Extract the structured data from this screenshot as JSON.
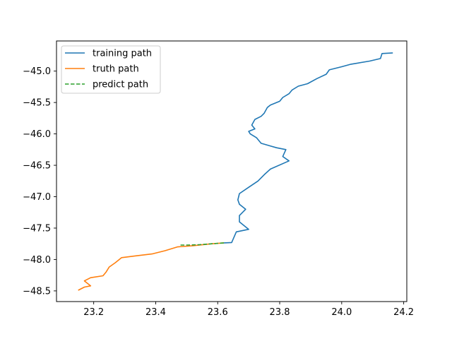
{
  "chart_data": {
    "type": "line",
    "title": "",
    "xlabel": "",
    "ylabel": "",
    "xlim": [
      23.08,
      24.21
    ],
    "ylim": [
      -48.67,
      -44.52
    ],
    "xticks": [
      23.2,
      23.4,
      23.6,
      23.8,
      24.0,
      24.2
    ],
    "xtick_labels": [
      "23.2",
      "23.4",
      "23.6",
      "23.8",
      "24.0",
      "24.2"
    ],
    "yticks": [
      -45.0,
      -45.5,
      -46.0,
      -46.5,
      -47.0,
      -47.5,
      -48.0,
      -48.5
    ],
    "ytick_labels": [
      "−45.0",
      "−45.5",
      "−46.0",
      "−46.5",
      "−47.0",
      "−47.5",
      "−48.0",
      "−48.5"
    ],
    "grid": false,
    "legend_position": "top-left",
    "series": [
      {
        "name": "training path",
        "color": "#1f77b4",
        "style": "solid",
        "points": [
          [
            24.165,
            -44.71
          ],
          [
            24.13,
            -44.72
          ],
          [
            24.125,
            -44.8
          ],
          [
            24.09,
            -44.84
          ],
          [
            24.03,
            -44.89
          ],
          [
            24.0,
            -44.93
          ],
          [
            23.96,
            -44.98
          ],
          [
            23.95,
            -45.05
          ],
          [
            23.92,
            -45.12
          ],
          [
            23.89,
            -45.2
          ],
          [
            23.86,
            -45.24
          ],
          [
            23.84,
            -45.3
          ],
          [
            23.83,
            -45.36
          ],
          [
            23.81,
            -45.42
          ],
          [
            23.8,
            -45.48
          ],
          [
            23.77,
            -45.54
          ],
          [
            23.76,
            -45.58
          ],
          [
            23.75,
            -45.67
          ],
          [
            23.74,
            -45.72
          ],
          [
            23.72,
            -45.77
          ],
          [
            23.71,
            -45.86
          ],
          [
            23.72,
            -45.92
          ],
          [
            23.7,
            -45.96
          ],
          [
            23.705,
            -46.0
          ],
          [
            23.725,
            -46.06
          ],
          [
            23.74,
            -46.15
          ],
          [
            23.79,
            -46.22
          ],
          [
            23.82,
            -46.25
          ],
          [
            23.81,
            -46.36
          ],
          [
            23.83,
            -46.43
          ],
          [
            23.77,
            -46.56
          ],
          [
            23.75,
            -46.65
          ],
          [
            23.73,
            -46.75
          ],
          [
            23.7,
            -46.85
          ],
          [
            23.67,
            -46.95
          ],
          [
            23.665,
            -47.05
          ],
          [
            23.67,
            -47.12
          ],
          [
            23.69,
            -47.2
          ],
          [
            23.67,
            -47.3
          ],
          [
            23.67,
            -47.4
          ],
          [
            23.7,
            -47.52
          ],
          [
            23.66,
            -47.56
          ],
          [
            23.645,
            -47.73
          ],
          [
            23.62,
            -47.735
          ]
        ]
      },
      {
        "name": "truth path",
        "color": "#ff7f0e",
        "style": "solid",
        "points": [
          [
            23.62,
            -47.735
          ],
          [
            23.58,
            -47.75
          ],
          [
            23.52,
            -47.78
          ],
          [
            23.47,
            -47.8
          ],
          [
            23.43,
            -47.86
          ],
          [
            23.39,
            -47.91
          ],
          [
            23.34,
            -47.94
          ],
          [
            23.29,
            -47.97
          ],
          [
            23.27,
            -48.05
          ],
          [
            23.25,
            -48.12
          ],
          [
            23.24,
            -48.2
          ],
          [
            23.23,
            -48.26
          ],
          [
            23.19,
            -48.29
          ],
          [
            23.17,
            -48.34
          ],
          [
            23.19,
            -48.42
          ],
          [
            23.17,
            -48.44
          ],
          [
            23.15,
            -48.49
          ]
        ]
      },
      {
        "name": "predict path",
        "color": "#2ca02c",
        "style": "dashed",
        "points": [
          [
            23.62,
            -47.735
          ],
          [
            23.58,
            -47.75
          ],
          [
            23.54,
            -47.765
          ],
          [
            23.5,
            -47.77
          ],
          [
            23.475,
            -47.77
          ]
        ]
      }
    ]
  }
}
